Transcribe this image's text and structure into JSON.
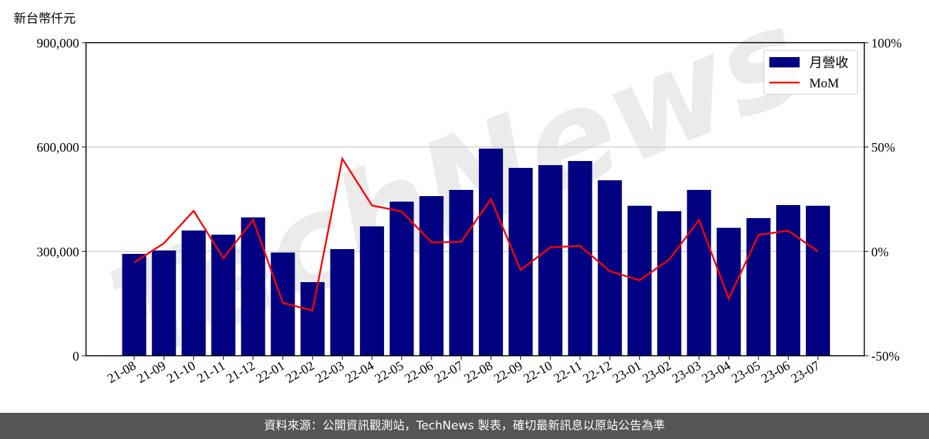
{
  "chart_data": {
    "type": "bar_line",
    "y_label": "新台幣仟元",
    "watermark": "TechNews",
    "footer": "資料來源：公開資訊觀測站，TechNews 製表，確切最新訊息以原站公告為準",
    "categories": [
      "21-08",
      "21-09",
      "21-10",
      "21-11",
      "21-12",
      "22-01",
      "22-02",
      "22-03",
      "22-04",
      "22-05",
      "22-06",
      "22-07",
      "22-08",
      "22-09",
      "22-10",
      "22-11",
      "22-12",
      "23-01",
      "23-02",
      "23-03",
      "23-04",
      "23-05",
      "23-06",
      "23-07"
    ],
    "series": [
      {
        "name": "月營收",
        "type": "bar",
        "color": "#000080",
        "values": [
          292700,
          302600,
          360000,
          348000,
          397600,
          296700,
          211600,
          306600,
          371900,
          443000,
          458900,
          476700,
          595400,
          540000,
          547900,
          559800,
          504400,
          431200,
          415400,
          476700,
          367900,
          395600,
          433200,
          431200
        ]
      },
      {
        "name": "MoM",
        "type": "line",
        "axis": "y2",
        "color": "#ff0000",
        "values": [
          -5.3,
          3.9,
          19.4,
          -3.3,
          15.1,
          -24.7,
          -28.3,
          44.4,
          22.0,
          19.1,
          4.3,
          4.6,
          25.0,
          -8.9,
          2.0,
          2.6,
          -9.5,
          -13.8,
          -3.9,
          15.1,
          -22.7,
          7.9,
          9.9,
          0
        ]
      }
    ],
    "ylim": [
      0,
      900000
    ],
    "yticks": [
      0,
      {
        "value": 300000,
        "label": "300,000"
      },
      {
        "value": 600000,
        "label": "600,000"
      },
      {
        "value": 900000,
        "label": "900,000"
      }
    ],
    "y2lim": [
      -50,
      100
    ],
    "y2ticks": [
      {
        "value": -50,
        "label": "-50%"
      },
      {
        "value": 0,
        "label": "0%"
      },
      {
        "value": 50,
        "label": "50%"
      },
      {
        "value": 100,
        "label": "100%"
      }
    ],
    "grid": true,
    "legend": "upper right"
  }
}
